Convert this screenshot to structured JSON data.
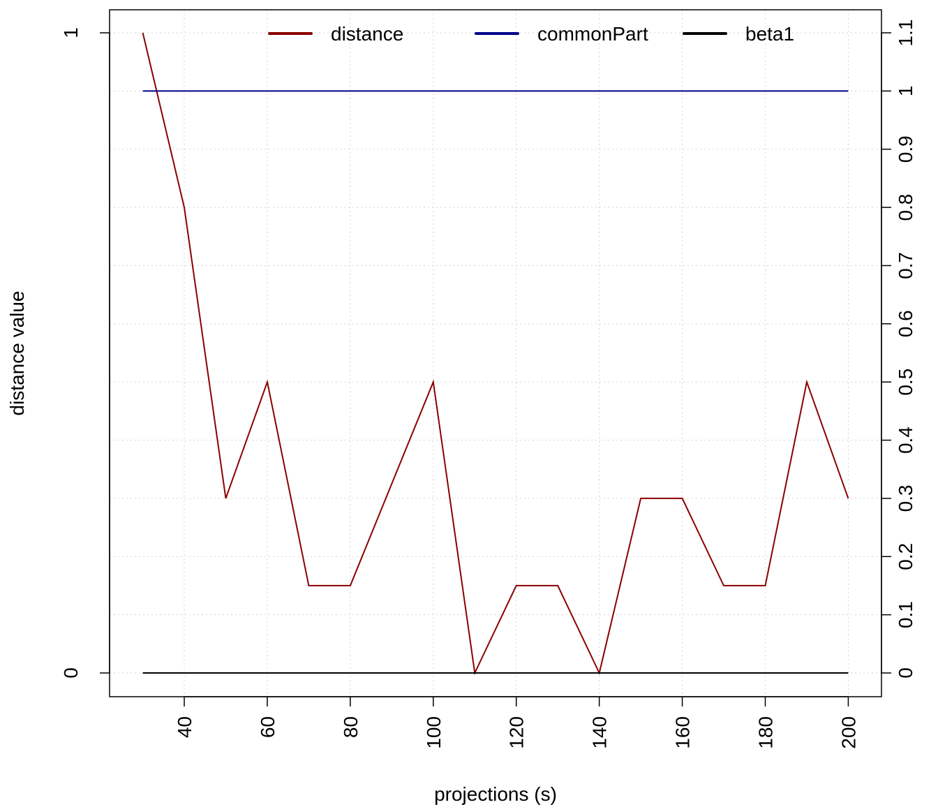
{
  "chart_data": {
    "type": "line",
    "title": "",
    "xlabel": "projections (s)",
    "ylabel": "distance value",
    "x": [
      30,
      40,
      50,
      60,
      70,
      80,
      90,
      100,
      110,
      120,
      130,
      140,
      150,
      160,
      170,
      180,
      190,
      200
    ],
    "xlim": [
      22,
      208
    ],
    "x_ticks": [
      40,
      60,
      80,
      100,
      120,
      140,
      160,
      180,
      200
    ],
    "x_tick_labels": [
      "40",
      "60",
      "80",
      "100",
      "120",
      "140",
      "160",
      "180",
      "200"
    ],
    "ylim_left": [
      0,
      1
    ],
    "y_left_ticks": [
      0,
      1
    ],
    "y_left_tick_labels": [
      "0",
      "1"
    ],
    "ylim_right": [
      0,
      1.1
    ],
    "y_right_ticks": [
      0,
      0.1,
      0.2,
      0.3,
      0.4,
      0.5,
      0.6,
      0.7,
      0.8,
      0.9,
      1,
      1.1
    ],
    "y_right_tick_labels": [
      "0",
      "0.1",
      "0.2",
      "0.3",
      "0.4",
      "0.5",
      "0.6",
      "0.7",
      "0.8",
      "0.9",
      "1",
      "1.1"
    ],
    "grid": true,
    "legend_position": "top",
    "series": [
      {
        "name": "distance",
        "color": "#8b0000",
        "axis": "left",
        "values": [
          1.0,
          0.7273,
          0.2727,
          0.4545,
          0.1364,
          0.1364,
          0.2955,
          0.4545,
          0.0,
          0.1364,
          0.1364,
          0.0,
          0.2727,
          0.2727,
          0.1364,
          0.1364,
          0.4545,
          0.2727
        ]
      },
      {
        "name": "commonPart",
        "color": "#00008b",
        "axis": "right",
        "values": [
          1,
          1,
          1,
          1,
          1,
          1,
          1,
          1,
          1,
          1,
          1,
          1,
          1,
          1,
          1,
          1,
          1,
          1
        ]
      },
      {
        "name": "beta1",
        "color": "#000000",
        "axis": "right",
        "values": [
          0,
          0,
          0,
          0,
          0,
          0,
          0,
          0,
          0,
          0,
          0,
          0,
          0,
          0,
          0,
          0,
          0,
          0
        ]
      }
    ]
  }
}
